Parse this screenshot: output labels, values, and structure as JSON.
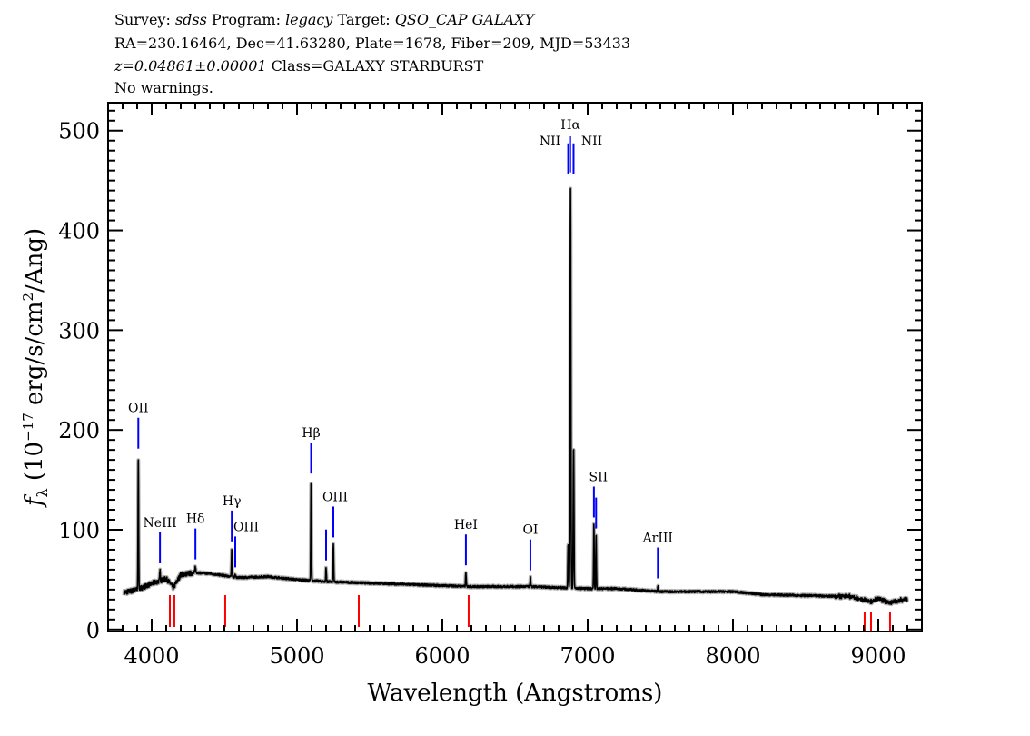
{
  "header": {
    "line1": {
      "survey_label": "Survey:",
      "survey": "sdss",
      "program_label": "Program:",
      "program": "legacy",
      "target_label": "Target:",
      "target": "QSO_CAP GALAXY"
    },
    "line2": "RA=230.16464, Dec=41.63280, Plate=1678, Fiber=209, MJD=53433",
    "line3": {
      "redshift": "z=0.04861±0.00001",
      "class": "Class=GALAXY STARBURST"
    },
    "line4": "No warnings."
  },
  "chart_data": {
    "type": "line",
    "xlabel": "Wavelength (Angstroms)",
    "ylabel": "f_λ (10^-17 erg/s/cm^2/Ang)",
    "xlim": [
      3700,
      9300
    ],
    "ylim": [
      -2,
      528
    ],
    "xticks": [
      4000,
      5000,
      6000,
      7000,
      8000,
      9000
    ],
    "yticks": [
      0,
      100,
      200,
      300,
      400,
      500
    ],
    "grid": false,
    "colors": {
      "spectrum": "#000000",
      "error": "#b0b0b0",
      "emission_marker": "#0000ff",
      "sky_marker": "#ff0000"
    },
    "continuum": {
      "wavelength": [
        3810,
        3900,
        4000,
        4100,
        4150,
        4200,
        4300,
        4400,
        4500,
        4600,
        4800,
        5000,
        5200,
        5400,
        5600,
        5800,
        6000,
        6200,
        6400,
        6600,
        6800,
        7000,
        7200,
        7500,
        8000,
        8200,
        8500,
        8800,
        8950,
        9000,
        9080,
        9200
      ],
      "flux": [
        37,
        40,
        46,
        51,
        42,
        55,
        57,
        56,
        54,
        52,
        53,
        50,
        48,
        47,
        46,
        45,
        44,
        43,
        43,
        43,
        42,
        41,
        41,
        38,
        38,
        35,
        34,
        33,
        28,
        31,
        27,
        31
      ]
    },
    "emission_lines": [
      {
        "name": "OII",
        "wavelength": 3908,
        "peak": 174
      },
      {
        "name": "NeIII",
        "wavelength": 4057,
        "peak": 59
      },
      {
        "name": "Hδ",
        "wavelength": 4301,
        "peak": 63
      },
      {
        "name": "Hγ",
        "wavelength": 4551,
        "peak": 81
      },
      {
        "name": "OIII",
        "wavelength": 4575,
        "peak": 55
      },
      {
        "name": "Hβ",
        "wavelength": 5097,
        "peak": 149
      },
      {
        "name": "OIII",
        "wavelength": 5200,
        "peak": 62
      },
      {
        "name": "OIII",
        "wavelength": 5250,
        "peak": 85
      },
      {
        "name": "HeI",
        "wavelength": 6162,
        "peak": 57
      },
      {
        "name": "OI",
        "wavelength": 6606,
        "peak": 52
      },
      {
        "name": "NII",
        "wavelength": 6866,
        "peak": 85
      },
      {
        "name": "Hα",
        "wavelength": 6882,
        "peak": 443
      },
      {
        "name": "NII",
        "wavelength": 6903,
        "peak": 183
      },
      {
        "name": "SII",
        "wavelength": 7043,
        "peak": 105
      },
      {
        "name": "SII",
        "wavelength": 7058,
        "peak": 94
      },
      {
        "name": "ArIII",
        "wavelength": 7483,
        "peak": 44
      }
    ],
    "sky_lines": [
      4125,
      4156,
      4506,
      5425,
      6181,
      8906,
      8950,
      9081
    ]
  }
}
